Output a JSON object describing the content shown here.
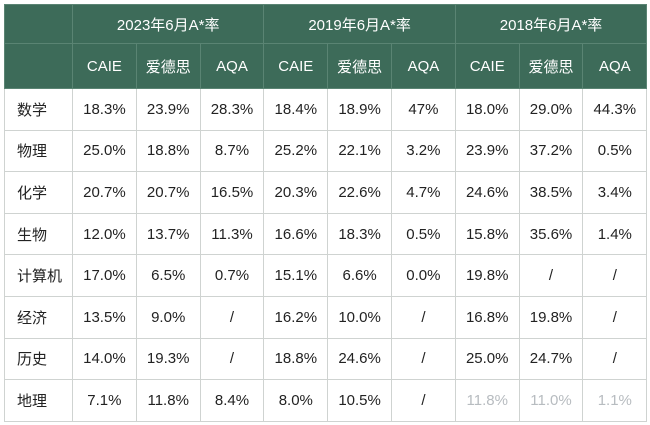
{
  "table": {
    "years": [
      {
        "label": "2023年6月A*率"
      },
      {
        "label": "2019年6月A*率"
      },
      {
        "label": "2018年6月A*率"
      }
    ],
    "boards": [
      "CAIE",
      "爱德思",
      "AQA",
      "CAIE",
      "爱德思",
      "AQA",
      "CAIE",
      "爱德思",
      "AQA"
    ],
    "rows": [
      {
        "subject": "数学",
        "values": [
          "18.3%",
          "23.9%",
          "28.3%",
          "18.4%",
          "18.9%",
          "47%",
          "18.0%",
          "29.0%",
          "44.3%"
        ]
      },
      {
        "subject": "物理",
        "values": [
          "25.0%",
          "18.8%",
          "8.7%",
          "25.2%",
          "22.1%",
          "3.2%",
          "23.9%",
          "37.2%",
          "0.5%"
        ]
      },
      {
        "subject": "化学",
        "values": [
          "20.7%",
          "20.7%",
          "16.5%",
          "20.3%",
          "22.6%",
          "4.7%",
          "24.6%",
          "38.5%",
          "3.4%"
        ]
      },
      {
        "subject": "生物",
        "values": [
          "12.0%",
          "13.7%",
          "11.3%",
          "16.6%",
          "18.3%",
          "0.5%",
          "15.8%",
          "35.6%",
          "1.4%"
        ]
      },
      {
        "subject": "计算机",
        "values": [
          "17.0%",
          "6.5%",
          "0.7%",
          "15.1%",
          "6.6%",
          "0.0%",
          "19.8%",
          "/",
          "/"
        ]
      },
      {
        "subject": "经济",
        "values": [
          "13.5%",
          "9.0%",
          "/",
          "16.2%",
          "10.0%",
          "/",
          "16.8%",
          "19.8%",
          "/"
        ]
      },
      {
        "subject": "历史",
        "values": [
          "14.0%",
          "19.3%",
          "/",
          "18.8%",
          "24.6%",
          "/",
          "25.0%",
          "24.7%",
          "/"
        ]
      },
      {
        "subject": "地理",
        "values": [
          "7.1%",
          "11.8%",
          "8.4%",
          "8.0%",
          "10.5%",
          "/",
          "11.8%",
          "11.0%",
          "1.1%"
        ]
      }
    ]
  }
}
